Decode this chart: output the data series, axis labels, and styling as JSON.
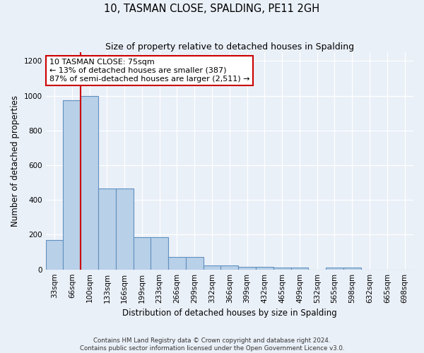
{
  "title": "10, TASMAN CLOSE, SPALDING, PE11 2GH",
  "subtitle": "Size of property relative to detached houses in Spalding",
  "xlabel": "Distribution of detached houses by size in Spalding",
  "ylabel": "Number of detached properties",
  "categories": [
    "33sqm",
    "66sqm",
    "100sqm",
    "133sqm",
    "166sqm",
    "199sqm",
    "233sqm",
    "266sqm",
    "299sqm",
    "332sqm",
    "366sqm",
    "399sqm",
    "432sqm",
    "465sqm",
    "499sqm",
    "532sqm",
    "565sqm",
    "598sqm",
    "632sqm",
    "665sqm",
    "698sqm"
  ],
  "values": [
    170,
    975,
    1000,
    465,
    465,
    185,
    185,
    72,
    72,
    22,
    22,
    15,
    15,
    10,
    10,
    0,
    10,
    10,
    0,
    0,
    0
  ],
  "bar_color": "#b8d0e8",
  "bar_edge_color": "#6090c0",
  "background_color": "#eaf0f8",
  "grid_color": "#ffffff",
  "vline_color": "#cc0000",
  "vline_pos": 1.5,
  "annotation_text": "10 TASMAN CLOSE: 75sqm\n← 13% of detached houses are smaller (387)\n87% of semi-detached houses are larger (2,511) →",
  "annotation_box_color": "#ffffff",
  "annotation_box_edge": "#cc0000",
  "footnote": "Contains HM Land Registry data © Crown copyright and database right 2024.\nContains public sector information licensed under the Open Government Licence v3.0.",
  "ylim": [
    0,
    1250
  ],
  "yticks": [
    0,
    200,
    400,
    600,
    800,
    1000,
    1200
  ]
}
